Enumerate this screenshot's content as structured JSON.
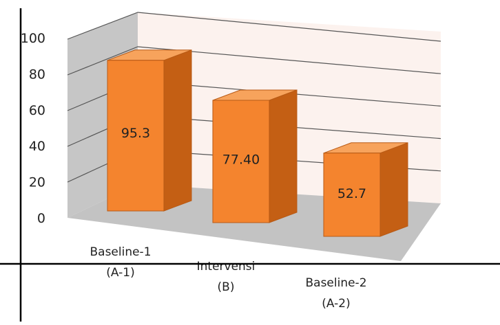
{
  "chart_data": {
    "type": "bar",
    "style": "3d",
    "categories": [
      [
        "Baseline-1",
        "(A-1)"
      ],
      [
        "Intervensi",
        "(B)"
      ],
      [
        "Baseline-2",
        "(A-2)"
      ]
    ],
    "values": [
      95.3,
      77.4,
      52.7
    ],
    "data_labels": [
      "95.3",
      "77.40",
      "52.7"
    ],
    "y_ticks": [
      "0",
      "20",
      "40",
      "60",
      "80",
      "100"
    ],
    "ylim": [
      0,
      100
    ],
    "grid": true,
    "legend": "none",
    "title": "",
    "xlabel": "",
    "ylabel": "",
    "colors": {
      "bar_front": "#f4842e",
      "bar_top": "#f7a35c",
      "bar_side": "#c45f14",
      "bar_edge": "#b85a15",
      "back_wall": "#fcf2ee",
      "side_wall": "#c6c6c6",
      "floor": "#c3c3c3",
      "grid": "#555555",
      "axis": "#000000"
    }
  }
}
